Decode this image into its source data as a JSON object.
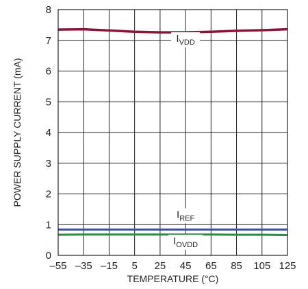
{
  "chart_data": {
    "type": "line",
    "xlabel": "TEMPERATURE (°C)",
    "ylabel": "POWER SUPPLY CURRENT (mA)",
    "xlim": [
      -55,
      125
    ],
    "ylim": [
      0,
      8
    ],
    "x_ticks": [
      "–55",
      "–35",
      "–15",
      "5",
      "25",
      "45",
      "65",
      "85",
      "105",
      "125"
    ],
    "y_ticks": [
      "0",
      "1",
      "2",
      "3",
      "4",
      "5",
      "6",
      "7",
      "8"
    ],
    "grid": true,
    "legend": "none (series labelled inline)",
    "series": [
      {
        "name": "IVDD",
        "label_main": "I",
        "label_sub": "VDD",
        "color": "#8b1538",
        "x": [
          -55,
          -35,
          -15,
          5,
          25,
          45,
          65,
          85,
          105,
          125
        ],
        "y": [
          7.35,
          7.36,
          7.32,
          7.28,
          7.26,
          7.26,
          7.28,
          7.31,
          7.33,
          7.36
        ]
      },
      {
        "name": "IREF",
        "label_main": "I",
        "label_sub": "REF",
        "color": "#3a4fa3",
        "x": [
          -55,
          -35,
          -15,
          5,
          25,
          45,
          65,
          85,
          105,
          125
        ],
        "y": [
          0.84,
          0.84,
          0.84,
          0.84,
          0.84,
          0.84,
          0.84,
          0.84,
          0.84,
          0.84
        ]
      },
      {
        "name": "IOVDD",
        "label_main": "I",
        "label_sub": "OVDD",
        "color": "#2e8b3e",
        "x": [
          -55,
          -35,
          -15,
          5,
          25,
          45,
          65,
          85,
          105,
          125
        ],
        "y": [
          0.67,
          0.68,
          0.68,
          0.68,
          0.68,
          0.68,
          0.68,
          0.67,
          0.67,
          0.66
        ]
      }
    ]
  }
}
